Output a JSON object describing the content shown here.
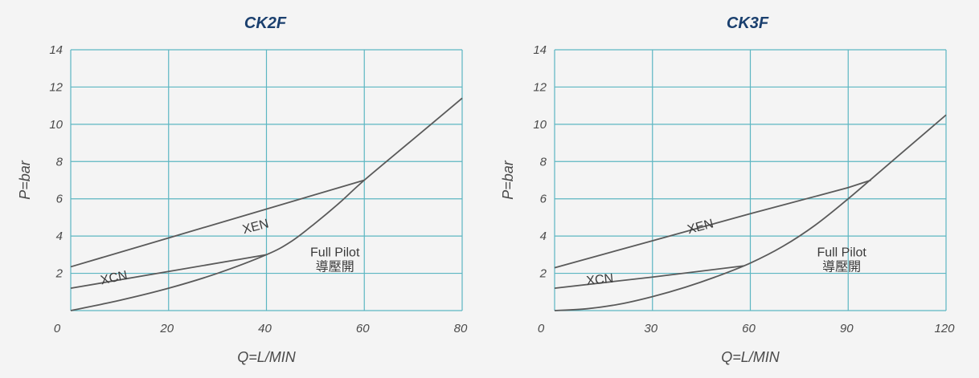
{
  "chart_data": [
    {
      "type": "line",
      "title": "CK2F",
      "xlabel": "Q=L/MIN",
      "ylabel": "P=bar",
      "xlim": [
        0,
        80
      ],
      "ylim": [
        0,
        14
      ],
      "xticks": [
        "0",
        "20",
        "40",
        "60",
        "80"
      ],
      "yticks": [
        "2",
        "4",
        "6",
        "8",
        "10",
        "12",
        "14"
      ],
      "grid": true,
      "annotation": [
        "Full Pilot",
        "導壓開"
      ],
      "series": [
        {
          "name": "XEN",
          "x": [
            0,
            20,
            40,
            60
          ],
          "y": [
            2.35,
            3.9,
            5.45,
            7.0
          ]
        },
        {
          "name": "XCN",
          "x": [
            0,
            20,
            40
          ],
          "y": [
            1.2,
            2.1,
            3.0
          ]
        },
        {
          "name": "",
          "x": [
            0,
            10,
            20,
            30,
            40,
            45,
            50,
            55,
            60,
            70,
            80
          ],
          "y": [
            0,
            0.55,
            1.2,
            2.0,
            3.0,
            3.7,
            4.7,
            5.8,
            7.0,
            9.2,
            11.4
          ]
        }
      ]
    },
    {
      "type": "line",
      "title": "CK3F",
      "xlabel": "Q=L/MIN",
      "ylabel": "P=bar",
      "xlim": [
        0,
        120
      ],
      "ylim": [
        0,
        14
      ],
      "xticks": [
        "0",
        "30",
        "60",
        "90",
        "120"
      ],
      "yticks": [
        "2",
        "4",
        "6",
        "8",
        "10",
        "12",
        "14"
      ],
      "grid": true,
      "annotation": [
        "Full Pilot",
        "導壓開"
      ],
      "series": [
        {
          "name": "XEN",
          "x": [
            0,
            30,
            60,
            90,
            97
          ],
          "y": [
            2.3,
            3.75,
            5.2,
            6.6,
            7.0
          ]
        },
        {
          "name": "XCN",
          "x": [
            0,
            30,
            58
          ],
          "y": [
            1.2,
            1.8,
            2.4
          ]
        },
        {
          "name": "",
          "x": [
            0,
            10,
            20,
            30,
            40,
            50,
            60,
            70,
            80,
            90,
            100,
            110,
            120
          ],
          "y": [
            0,
            0.1,
            0.35,
            0.75,
            1.25,
            1.85,
            2.55,
            3.45,
            4.6,
            6.0,
            7.5,
            9.0,
            10.5
          ]
        }
      ]
    }
  ]
}
